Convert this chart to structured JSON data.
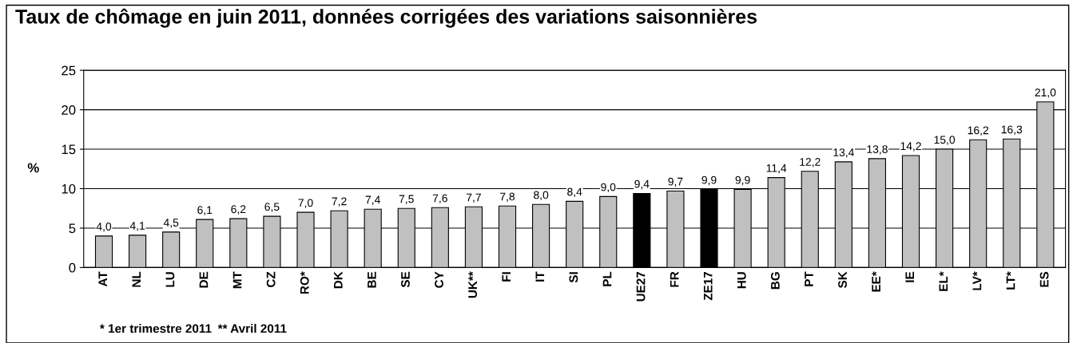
{
  "chart_data": {
    "type": "bar",
    "title": "Taux de chômage en juin 2011, données corrigées des variations saisonnières",
    "ylabel": "%",
    "categories": [
      "AT",
      "NL",
      "LU",
      "DE",
      "MT",
      "CZ",
      "RO*",
      "DK",
      "BE",
      "SE",
      "CY",
      "UK**",
      "FI",
      "IT",
      "SI",
      "PL",
      "UE27",
      "FR",
      "ZE17",
      "HU",
      "BG",
      "PT",
      "SK",
      "EE*",
      "IE",
      "EL*",
      "LV*",
      "LT*",
      "ES"
    ],
    "values": [
      4.0,
      4.1,
      4.5,
      6.1,
      6.2,
      6.5,
      7.0,
      7.2,
      7.4,
      7.5,
      7.6,
      7.7,
      7.8,
      8.0,
      8.4,
      9.0,
      9.4,
      9.7,
      9.9,
      9.9,
      11.4,
      12.2,
      13.4,
      13.8,
      14.2,
      15.0,
      16.2,
      16.3,
      21.0
    ],
    "value_labels": [
      "4,0",
      "4,1",
      "4,5",
      "6,1",
      "6,2",
      "6,5",
      "7,0",
      "7,2",
      "7,4",
      "7,5",
      "7,6",
      "7,7",
      "7,8",
      "8,0",
      "8,4",
      "9,0",
      "9,4",
      "9,7",
      "9,9",
      "9,9",
      "11,4",
      "12,2",
      "13,4",
      "13,8",
      "14,2",
      "15,0",
      "16,2",
      "16,3",
      "21,0"
    ],
    "colors": [
      "#c0c0c0",
      "#c0c0c0",
      "#c0c0c0",
      "#c0c0c0",
      "#c0c0c0",
      "#c0c0c0",
      "#c0c0c0",
      "#c0c0c0",
      "#c0c0c0",
      "#c0c0c0",
      "#c0c0c0",
      "#c0c0c0",
      "#c0c0c0",
      "#c0c0c0",
      "#c0c0c0",
      "#c0c0c0",
      "#000000",
      "#c0c0c0",
      "#000000",
      "#c0c0c0",
      "#c0c0c0",
      "#c0c0c0",
      "#c0c0c0",
      "#c0c0c0",
      "#c0c0c0",
      "#c0c0c0",
      "#c0c0c0",
      "#c0c0c0",
      "#c0c0c0"
    ],
    "ylim": [
      0,
      25
    ],
    "yticks": [
      0,
      5,
      10,
      15,
      20,
      25
    ],
    "grid": "y",
    "annotations": [
      "* 1er trimestre 2011",
      "** Avril 2011"
    ]
  }
}
